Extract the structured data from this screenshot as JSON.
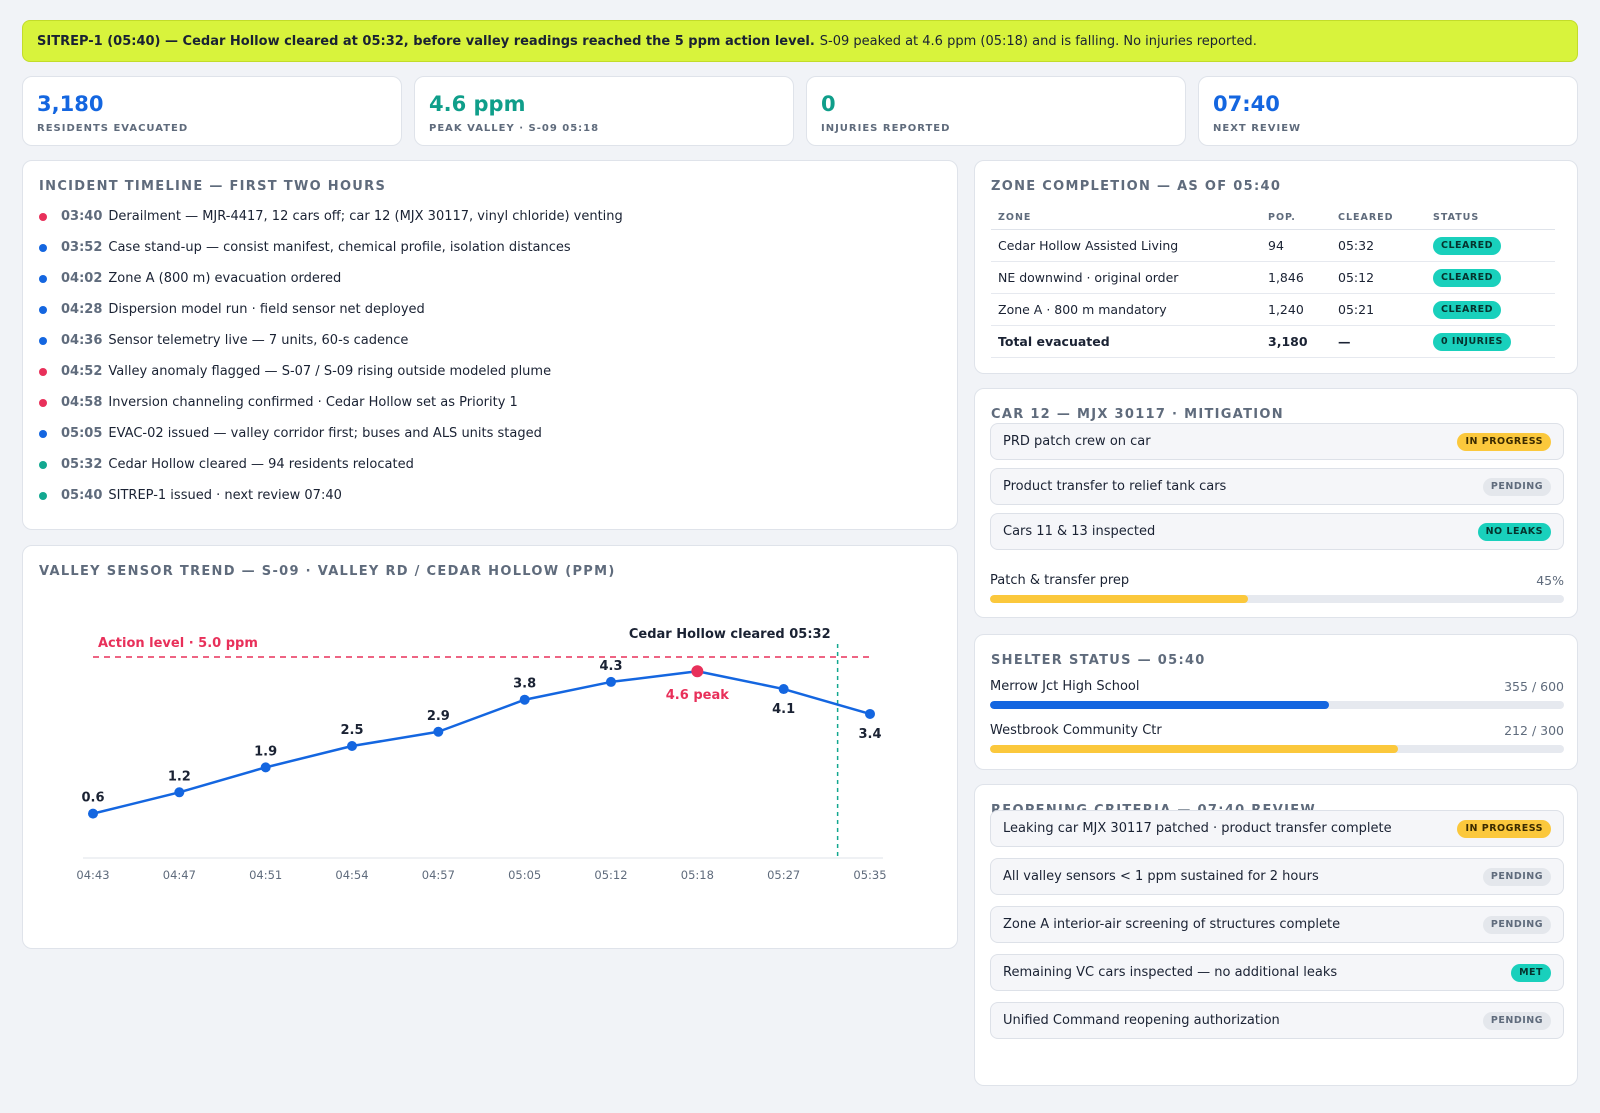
{
  "banner": {
    "bold": "SITREP-1 (05:40) — Cedar Hollow cleared at 05:32, before valley readings reached the 5 ppm action level.",
    "rest": "S-09 peaked at 4.6 ppm (05:18) and is falling. No injuries reported."
  },
  "kpis": [
    {
      "value": "3,180",
      "label": "RESIDENTS EVACUATED",
      "color": "#1466e0"
    },
    {
      "value": "4.6 ppm",
      "label": "PEAK VALLEY · S-09 05:18",
      "color": "#0f9e8a"
    },
    {
      "value": "0",
      "label": "INJURIES REPORTED",
      "color": "#0f9e8a"
    },
    {
      "value": "07:40",
      "label": "NEXT REVIEW",
      "color": "#1466e0"
    }
  ],
  "timeline": {
    "title": "INCIDENT TIMELINE — FIRST TWO HOURS",
    "items": [
      {
        "time": "03:40",
        "text": "Derailment — MJR-4417, 12 cars off; car 12 (MJX 30117, vinyl chloride) venting",
        "color": "#e8305a"
      },
      {
        "time": "03:52",
        "text": "Case stand-up — consist manifest, chemical profile, isolation distances",
        "color": "#1466e0"
      },
      {
        "time": "04:02",
        "text": "Zone A (800 m) evacuation ordered",
        "color": "#1466e0"
      },
      {
        "time": "04:28",
        "text": "Dispersion model run · field sensor net deployed",
        "color": "#1466e0"
      },
      {
        "time": "04:36",
        "text": "Sensor telemetry live — 7 units, 60-s cadence",
        "color": "#1466e0"
      },
      {
        "time": "04:52",
        "text": "Valley anomaly flagged — S-07 / S-09 rising outside modeled plume",
        "color": "#e8305a"
      },
      {
        "time": "04:58",
        "text": "Inversion channeling confirmed · Cedar Hollow set as Priority 1",
        "color": "#e8305a"
      },
      {
        "time": "05:05",
        "text": "EVAC-02 issued — valley corridor first; buses and ALS units staged",
        "color": "#1466e0"
      },
      {
        "time": "05:32",
        "text": "Cedar Hollow cleared — 94 residents relocated",
        "color": "#12a890"
      },
      {
        "time": "05:40",
        "text": "SITREP-1 issued · next review 07:40",
        "color": "#12a890"
      }
    ]
  },
  "trend": {
    "title": "VALLEY SENSOR TREND — S-09 · VALLEY RD / CEDAR HOLLOW (PPM)",
    "action_label": "Action level · 5.0 ppm",
    "cleared_label": "Cedar Hollow cleared 05:32",
    "peak_label": "4.6 peak"
  },
  "chart_data": {
    "type": "line",
    "x": [
      "04:43",
      "04:47",
      "04:51",
      "04:54",
      "04:57",
      "05:05",
      "05:12",
      "05:18",
      "05:27",
      "05:35"
    ],
    "values": [
      0.6,
      1.2,
      1.9,
      2.5,
      2.9,
      3.8,
      4.3,
      4.6,
      4.1,
      3.4
    ],
    "value_labels": [
      "0.6",
      "1.2",
      "1.9",
      "2.5",
      "2.9",
      "3.8",
      "4.3",
      "",
      "4.1",
      "3.4"
    ],
    "ylim": [
      0,
      5.5
    ],
    "action_level": 5.0,
    "cleared_time": "05:32",
    "peak_index": 7,
    "line_color": "#1466e0",
    "peak_color": "#e8305a",
    "action_color": "#e8305a",
    "cleared_color": "#12a890"
  },
  "zones": {
    "title": "ZONE COMPLETION — AS OF 05:40",
    "headers": [
      "ZONE",
      "POP.",
      "CLEARED",
      "STATUS"
    ],
    "rows": [
      {
        "zone": "Cedar Hollow Assisted Living",
        "pop": "94",
        "cleared": "05:32",
        "status": "CLEARED"
      },
      {
        "zone": "NE downwind · original order",
        "pop": "1,846",
        "cleared": "05:12",
        "status": "CLEARED"
      },
      {
        "zone": "Zone A · 800 m mandatory",
        "pop": "1,240",
        "cleared": "05:21",
        "status": "CLEARED"
      }
    ],
    "total": {
      "zone": "Total evacuated",
      "pop": "3,180",
      "cleared": "—",
      "status": "0 INJURIES"
    }
  },
  "mitigation": {
    "title": "CAR 12 — MJX 30117 · MITIGATION",
    "items": [
      {
        "text": "PRD patch crew on car",
        "status": "IN PROGRESS",
        "tone": "yellow"
      },
      {
        "text": "Product transfer to relief tank cars",
        "status": "PENDING",
        "tone": "gray"
      },
      {
        "text": "Cars 11 & 13 inspected",
        "status": "NO LEAKS",
        "tone": "green"
      }
    ],
    "progress_label": "Patch & transfer prep",
    "progress_value": "45%",
    "progress_fraction": 0.45,
    "progress_color": "#fbc83c"
  },
  "shelters": {
    "title": "SHELTER STATUS — 05:40",
    "items": [
      {
        "name": "Merrow Jct High School",
        "count": "355 / 600",
        "fraction": 0.59,
        "color": "#1466e0"
      },
      {
        "name": "Westbrook Community Ctr",
        "count": "212 / 300",
        "fraction": 0.71,
        "color": "#fbc83c"
      }
    ]
  },
  "reopening": {
    "title": "REOPENING CRITERIA — 07:40 REVIEW",
    "items": [
      {
        "text": "Leaking car MJX 30117 patched · product transfer complete",
        "status": "IN PROGRESS",
        "tone": "yellow"
      },
      {
        "text": "All valley sensors < 1 ppm sustained for 2 hours",
        "status": "PENDING",
        "tone": "gray"
      },
      {
        "text": "Zone A interior-air screening of structures complete",
        "status": "PENDING",
        "tone": "gray"
      },
      {
        "text": "Remaining VC cars inspected — no additional leaks",
        "status": "MET",
        "tone": "green"
      },
      {
        "text": "Unified Command reopening authorization",
        "status": "PENDING",
        "tone": "gray"
      }
    ]
  }
}
